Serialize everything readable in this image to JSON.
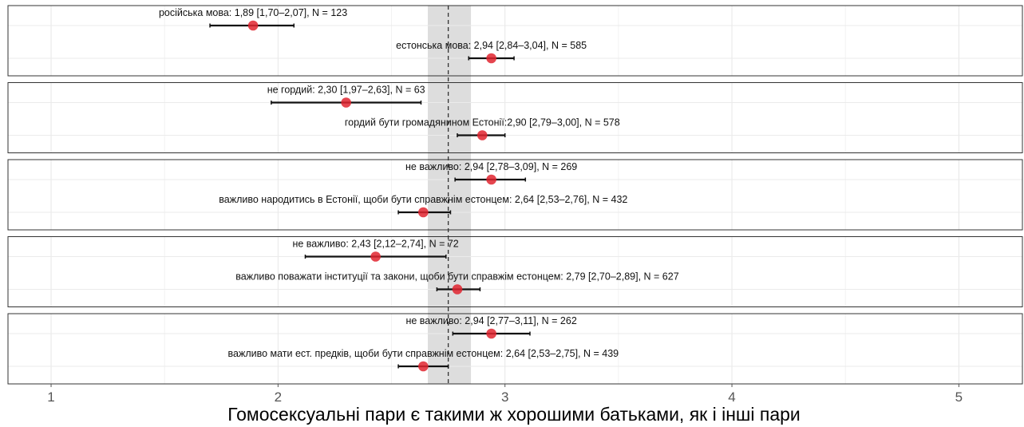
{
  "chart_data": {
    "type": "errorbar",
    "xlabel": "Гомосексуальні пари є такими ж хорошими батьками, як і інші пари",
    "xlim": [
      0.81,
      5.28
    ],
    "xticks": [
      1,
      2,
      3,
      4,
      5
    ],
    "reference": {
      "mean": 2.75,
      "ci": [
        2.66,
        2.85
      ]
    },
    "grid": true,
    "colors": {
      "point": "#e0252f",
      "errorbar": "#111111",
      "band": "#d9d9d9",
      "reference_line": "#333333",
      "panel_border": "#333333"
    },
    "panels": [
      {
        "rows": [
          {
            "label": "російська мова: 1,89 [1,70–2,07], N = 123",
            "mean": 1.89,
            "ci": [
              1.7,
              2.07
            ],
            "n": 123
          },
          {
            "label": "естонська мова: 2,94 [2,84–3,04], N = 585",
            "mean": 2.94,
            "ci": [
              2.84,
              3.04
            ],
            "n": 585
          }
        ]
      },
      {
        "rows": [
          {
            "label": "не гордий: 2,30 [1,97–2,63], N = 63",
            "mean": 2.3,
            "ci": [
              1.97,
              2.63
            ],
            "n": 63
          },
          {
            "label": "гордий бути громадянином Естонії:2,90 [2,79–3,00], N = 578",
            "mean": 2.9,
            "ci": [
              2.79,
              3.0
            ],
            "n": 578
          }
        ]
      },
      {
        "rows": [
          {
            "label": "не важливо: 2,94 [2,78–3,09], N = 269",
            "mean": 2.94,
            "ci": [
              2.78,
              3.09
            ],
            "n": 269
          },
          {
            "label": "важливо народитись в Естонії, щоби бути справжнім естонцем: 2,64 [2,53–2,76], N = 432",
            "mean": 2.64,
            "ci": [
              2.53,
              2.76
            ],
            "n": 432
          }
        ]
      },
      {
        "rows": [
          {
            "label": "не важливо: 2,43 [2,12–2,74], N = 72",
            "mean": 2.43,
            "ci": [
              2.12,
              2.74
            ],
            "n": 72
          },
          {
            "label": "важливо поважати інституції та закони, щоби бути справжім естонцем: 2,79 [2,70–2,89], N = 627",
            "mean": 2.79,
            "ci": [
              2.7,
              2.89
            ],
            "n": 627
          }
        ]
      },
      {
        "rows": [
          {
            "label": "не важливо: 2,94 [2,77–3,11], N = 262",
            "mean": 2.94,
            "ci": [
              2.77,
              3.11
            ],
            "n": 262
          },
          {
            "label": "важливо мати ест. предків, щоби бути справжнім естонцем: 2,64 [2,53–2,75], N = 439",
            "mean": 2.64,
            "ci": [
              2.53,
              2.75
            ],
            "n": 439
          }
        ]
      }
    ]
  }
}
